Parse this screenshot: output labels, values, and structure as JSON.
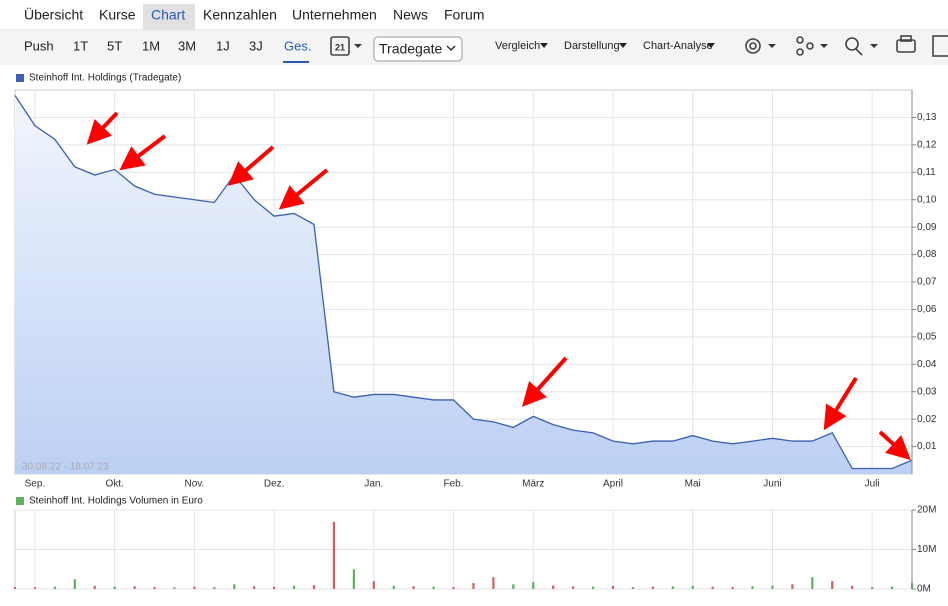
{
  "nav": {
    "tabs": [
      "Übersicht",
      "Kurse",
      "Chart",
      "Kennzahlen",
      "Unternehmen",
      "News",
      "Forum"
    ],
    "active_tab": 2
  },
  "toolbar": {
    "periods": [
      "Push",
      "1T",
      "5T",
      "1M",
      "3M",
      "1J",
      "3J",
      "Ges."
    ],
    "active_period": 7,
    "calendar_day": "21",
    "exchange": "Tradegate",
    "menus": [
      "Vergleich",
      "Darstellung",
      "Chart-Analyse"
    ]
  },
  "chart_data": [
    {
      "type": "line",
      "legend": "Steinhoff Int. Holdings (Tradegate)",
      "annotation": "30.08.22 - 18.07.23",
      "categories": [
        null,
        "Sep.",
        null,
        null,
        null,
        "Okt.",
        null,
        null,
        null,
        "Nov.",
        null,
        null,
        null,
        "Dez.",
        null,
        null,
        null,
        null,
        "Jan.",
        null,
        null,
        null,
        "Feb.",
        null,
        null,
        null,
        "März",
        null,
        null,
        null,
        "April",
        null,
        null,
        null,
        "Mai",
        null,
        null,
        null,
        "Juni",
        null,
        null,
        null,
        null,
        "Juli",
        null,
        null
      ],
      "series": [
        {
          "color": "#3a5fb5",
          "values": [
            0.138,
            0.127,
            0.122,
            0.112,
            0.109,
            0.111,
            0.105,
            0.102,
            0.101,
            0.1,
            0.099,
            0.109,
            0.1,
            0.094,
            0.095,
            0.091,
            0.03,
            0.028,
            0.029,
            0.029,
            0.028,
            0.027,
            0.027,
            0.02,
            0.019,
            0.017,
            0.021,
            0.018,
            0.016,
            0.015,
            0.012,
            0.011,
            0.012,
            0.012,
            0.014,
            0.012,
            0.011,
            0.012,
            0.013,
            0.012,
            0.012,
            0.015,
            0.002,
            0.002,
            0.002,
            0.005
          ]
        }
      ],
      "ylim": [
        0,
        0.14
      ],
      "yticks": [
        {
          "value": 0.01,
          "label": "0,01"
        },
        {
          "value": 0.02,
          "label": "0,02"
        },
        {
          "value": 0.03,
          "label": "0,03"
        },
        {
          "value": 0.04,
          "label": "0,04"
        },
        {
          "value": 0.05,
          "label": "0,05"
        },
        {
          "value": 0.06,
          "label": "0,06"
        },
        {
          "value": 0.07,
          "label": "0,07"
        },
        {
          "value": 0.08,
          "label": "0,08"
        },
        {
          "value": 0.09,
          "label": "0,09"
        },
        {
          "value": 0.1,
          "label": "0,10"
        },
        {
          "value": 0.11,
          "label": "0,11"
        },
        {
          "value": 0.12,
          "label": "0,12"
        },
        {
          "value": 0.13,
          "label": "0,13"
        }
      ],
      "grid": true
    },
    {
      "type": "bar",
      "legend": "Steinhoff Int. Holdings Volumen in Euro",
      "values": [
        500000,
        400000,
        600000,
        2500000,
        800000,
        600000,
        700000,
        500000,
        400000,
        600000,
        500000,
        1200000,
        700000,
        600000,
        800000,
        1000000,
        17000000,
        5000000,
        2000000,
        800000,
        700000,
        600000,
        500000,
        1500000,
        3000000,
        1200000,
        1800000,
        900000,
        700000,
        600000,
        800000,
        500000,
        600000,
        700000,
        800000,
        600000,
        500000,
        700000,
        900000,
        1200000,
        3000000,
        2000000,
        800000,
        500000,
        600000,
        1500000
      ],
      "colors": [
        "#d06060",
        "#d06060",
        "#60b060",
        "#60b060",
        "#d06060",
        "#60b060",
        "#d06060",
        "#d06060",
        "#60b060",
        "#d06060",
        "#60b060",
        "#60b060",
        "#d06060",
        "#d06060",
        "#60b060",
        "#d06060",
        "#d06060",
        "#60b060",
        "#d06060",
        "#60b060",
        "#d06060",
        "#60b060",
        "#d06060",
        "#d06060",
        "#d06060",
        "#60b060",
        "#60b060",
        "#d06060",
        "#d06060",
        "#60b060",
        "#d06060",
        "#60b060",
        "#d06060",
        "#60b060",
        "#60b060",
        "#d06060",
        "#d06060",
        "#60b060",
        "#60b060",
        "#d06060",
        "#60b060",
        "#d06060",
        "#d06060",
        "#60b060",
        "#60b060",
        "#60b060"
      ],
      "ylim": [
        0,
        20000000
      ],
      "yticks": [
        {
          "value": 0,
          "label": "0M"
        },
        {
          "value": 10000000,
          "label": "10M"
        },
        {
          "value": 20000000,
          "label": "20M"
        }
      ],
      "grid": true
    }
  ]
}
